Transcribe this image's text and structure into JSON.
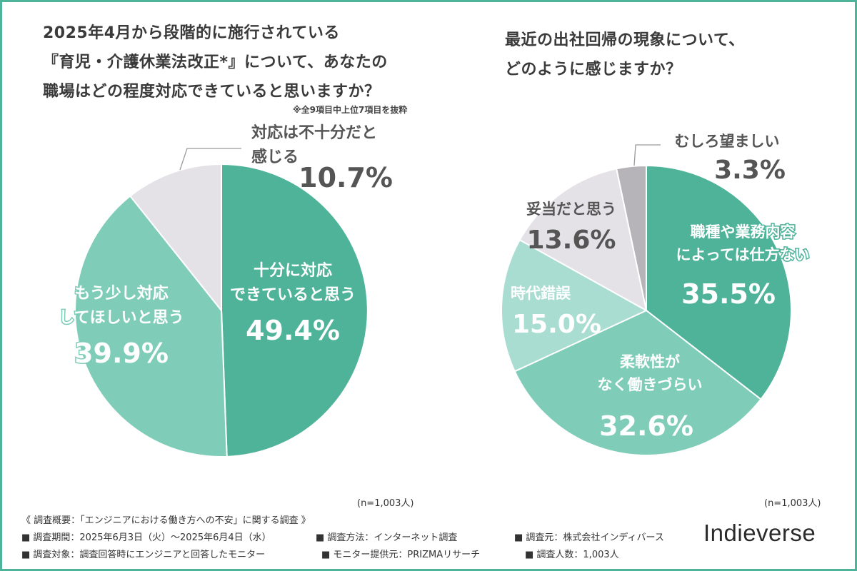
{
  "chart_data": [
    {
      "type": "pie",
      "title_lines": [
        "2025年4月から段階的に施行されている",
        "『育児・介護休業法改正*』について、あなたの",
        "職場はどの程度対応できていると思いますか？"
      ],
      "note": "※全9項目中上位7項目を抜粋",
      "n_label": "(n=1,003人)",
      "slices": [
        {
          "label_lines": [
            "十分に対応",
            "できていると思う"
          ],
          "value": 49.4,
          "value_text": "49.4%",
          "color": "#4fb39a"
        },
        {
          "label_lines": [
            "もう少し対応",
            "してほしいと思う"
          ],
          "value": 39.9,
          "value_text": "39.9%",
          "color": "#7fcdb8"
        },
        {
          "label_lines": [
            "対応は不十分だと",
            "感じる"
          ],
          "value": 10.7,
          "value_text": "10.7%",
          "color": "#e4e2e6"
        }
      ]
    },
    {
      "type": "pie",
      "title_lines": [
        "最近の出社回帰の現象について、",
        "どのように感じますか？"
      ],
      "n_label": "(n=1,003人)",
      "slices": [
        {
          "label_lines": [
            "職種や業務内容",
            "によっては仕方ない"
          ],
          "value": 35.5,
          "value_text": "35.5%",
          "color": "#4fb39a"
        },
        {
          "label_lines": [
            "柔軟性が",
            "なく働きづらい"
          ],
          "value": 32.6,
          "value_text": "32.6%",
          "color": "#7fcdb8"
        },
        {
          "label_lines": [
            "時代錯誤"
          ],
          "value": 15.0,
          "value_text": "15.0%",
          "color": "#a9ddd1"
        },
        {
          "label_lines": [
            "妥当だと思う"
          ],
          "value": 13.6,
          "value_text": "13.6%",
          "color": "#e4e2e6"
        },
        {
          "label_lines": [
            "むしろ望ましい"
          ],
          "value": 3.3,
          "value_text": "3.3%",
          "color": "#b6b4b8"
        }
      ]
    }
  ],
  "footer": {
    "overview": "《 調査概要：「エンジニアにおける働き方への不安」に関する調査 》",
    "period": "■ 調査期間：2025年6月3日（火）〜2025年6月4日（水）",
    "method": "■ 調査方法：インターネット調査",
    "source": "■ 調査元：株式会社インディバース",
    "target": "■ 調査対象：調査回答時にエンジニアと回答したモニター",
    "provider": "■ モニター提供元：PRIZMAリサーチ",
    "respondents": "■ 調査人数：1,003人"
  },
  "logo": "Indieverse"
}
